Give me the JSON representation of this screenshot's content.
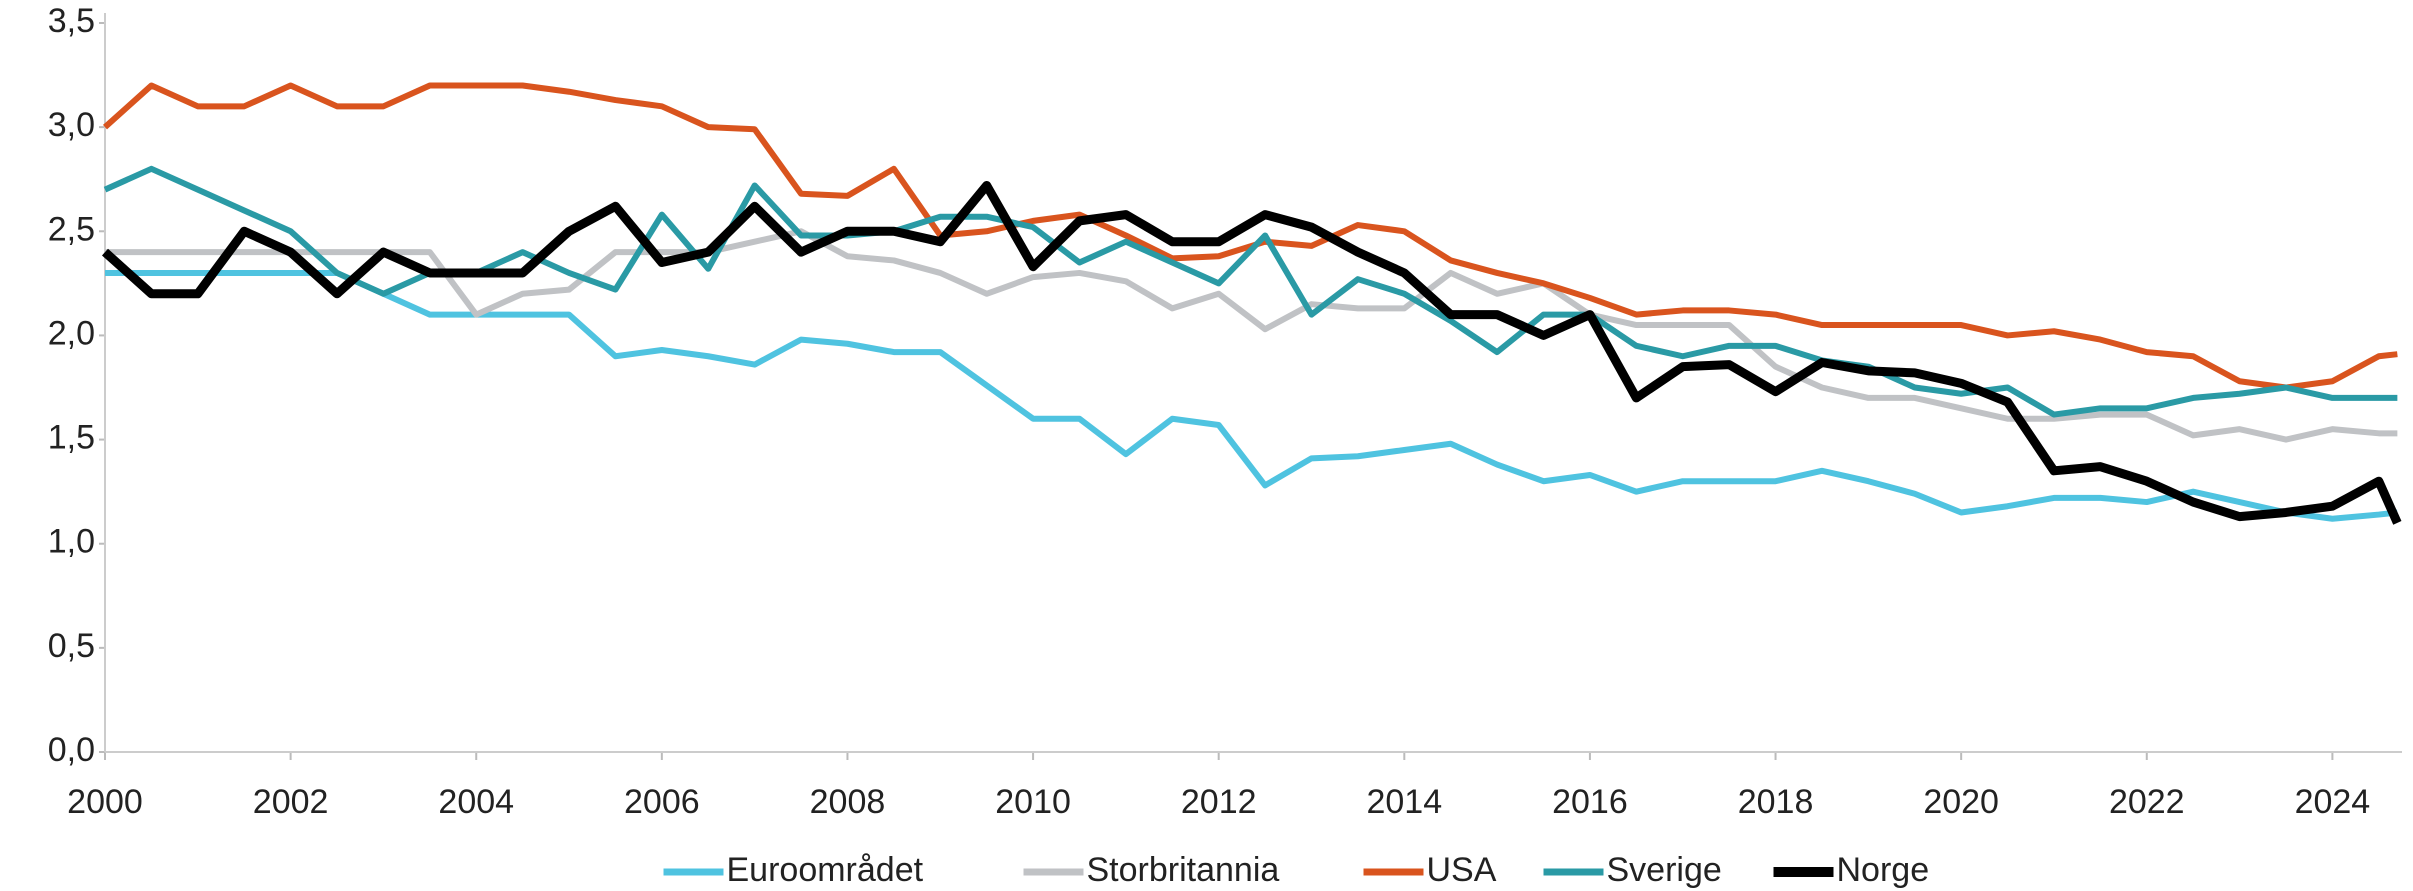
{
  "chart_data": {
    "type": "line",
    "x": [
      2000,
      2000.5,
      2001,
      2001.5,
      2002,
      2002.5,
      2003,
      2003.5,
      2004,
      2004.5,
      2005,
      2005.5,
      2006,
      2006.5,
      2007,
      2007.5,
      2008,
      2008.5,
      2009,
      2009.5,
      2010,
      2010.5,
      2011,
      2011.5,
      2012,
      2012.5,
      2013,
      2013.5,
      2014,
      2014.5,
      2015,
      2015.5,
      2016,
      2016.5,
      2017,
      2017.5,
      2018,
      2018.5,
      2019,
      2019.5,
      2020,
      2020.5,
      2021,
      2021.5,
      2022,
      2022.5,
      2023,
      2023.5,
      2024,
      2024.5,
      2024.7
    ],
    "series": [
      {
        "name": "Euroområdet",
        "color": "#4fc3e0",
        "values": [
          2.3,
          2.3,
          2.3,
          2.3,
          2.3,
          2.3,
          2.2,
          2.1,
          2.1,
          2.1,
          2.1,
          1.9,
          1.93,
          1.9,
          1.86,
          1.98,
          1.96,
          1.92,
          1.92,
          1.76,
          1.6,
          1.6,
          1.43,
          1.6,
          1.57,
          1.28,
          1.41,
          1.42,
          1.45,
          1.48,
          1.38,
          1.3,
          1.33,
          1.25,
          1.3,
          1.3,
          1.3,
          1.35,
          1.3,
          1.24,
          1.15,
          1.18,
          1.22,
          1.22,
          1.2,
          1.25,
          1.2,
          1.15,
          1.12,
          1.14,
          1.15
        ]
      },
      {
        "name": "Storbritannia",
        "color": "#c0c2c5",
        "values": [
          2.4,
          2.4,
          2.4,
          2.4,
          2.4,
          2.4,
          2.4,
          2.4,
          2.1,
          2.2,
          2.22,
          2.4,
          2.4,
          2.4,
          2.45,
          2.5,
          2.38,
          2.36,
          2.3,
          2.2,
          2.28,
          2.3,
          2.26,
          2.13,
          2.2,
          2.03,
          2.15,
          2.13,
          2.13,
          2.3,
          2.2,
          2.25,
          2.1,
          2.05,
          2.05,
          2.05,
          1.85,
          1.75,
          1.7,
          1.7,
          1.65,
          1.6,
          1.6,
          1.62,
          1.62,
          1.52,
          1.55,
          1.5,
          1.55,
          1.53,
          1.53
        ]
      },
      {
        "name": "USA",
        "color": "#d9541e",
        "values": [
          3.0,
          3.2,
          3.1,
          3.1,
          3.2,
          3.1,
          3.1,
          3.2,
          3.2,
          3.2,
          3.17,
          3.13,
          3.1,
          3.0,
          2.99,
          2.68,
          2.67,
          2.8,
          2.48,
          2.5,
          2.55,
          2.58,
          2.48,
          2.37,
          2.38,
          2.45,
          2.43,
          2.53,
          2.5,
          2.36,
          2.3,
          2.25,
          2.18,
          2.1,
          2.12,
          2.12,
          2.1,
          2.05,
          2.05,
          2.05,
          2.05,
          2.0,
          2.02,
          1.98,
          1.92,
          1.9,
          1.78,
          1.75,
          1.78,
          1.9,
          1.91
        ]
      },
      {
        "name": "Sverige",
        "color": "#2a9aa5",
        "values": [
          2.7,
          2.8,
          2.7,
          2.6,
          2.5,
          2.3,
          2.2,
          2.3,
          2.3,
          2.4,
          2.3,
          2.22,
          2.58,
          2.32,
          2.72,
          2.48,
          2.48,
          2.5,
          2.57,
          2.57,
          2.52,
          2.35,
          2.45,
          2.35,
          2.25,
          2.48,
          2.1,
          2.27,
          2.2,
          2.07,
          1.92,
          2.1,
          2.1,
          1.95,
          1.9,
          1.95,
          1.95,
          1.88,
          1.85,
          1.75,
          1.72,
          1.75,
          1.62,
          1.65,
          1.65,
          1.7,
          1.72,
          1.75,
          1.7,
          1.7,
          1.7
        ]
      },
      {
        "name": "Norge",
        "color": "#000000",
        "values": [
          2.4,
          2.2,
          2.2,
          2.5,
          2.4,
          2.2,
          2.4,
          2.3,
          2.3,
          2.3,
          2.5,
          2.62,
          2.35,
          2.4,
          2.62,
          2.4,
          2.5,
          2.5,
          2.45,
          2.72,
          2.33,
          2.55,
          2.58,
          2.45,
          2.45,
          2.58,
          2.52,
          2.4,
          2.3,
          2.1,
          2.1,
          2.0,
          2.1,
          1.7,
          1.85,
          1.86,
          1.73,
          1.87,
          1.83,
          1.82,
          1.77,
          1.68,
          1.35,
          1.37,
          1.3,
          1.2,
          1.13,
          1.15,
          1.18,
          1.3,
          1.1
        ]
      }
    ],
    "xlim": [
      2000,
      2024.75
    ],
    "xticks": [
      2000,
      2002,
      2004,
      2006,
      2008,
      2010,
      2012,
      2014,
      2016,
      2018,
      2020,
      2022,
      2024
    ],
    "ylim": [
      0,
      3.5
    ],
    "yticks": [
      {
        "value": 0,
        "label": "0,0"
      },
      {
        "value": 0.5,
        "label": "0,5"
      },
      {
        "value": 1,
        "label": "1,0"
      },
      {
        "value": 1.5,
        "label": "1,5"
      },
      {
        "value": 2,
        "label": "2,0"
      },
      {
        "value": 2.5,
        "label": "2,5"
      },
      {
        "value": 3,
        "label": "3,0"
      },
      {
        "value": 3.5,
        "label": "3,5"
      }
    ],
    "legend": "bottom"
  }
}
